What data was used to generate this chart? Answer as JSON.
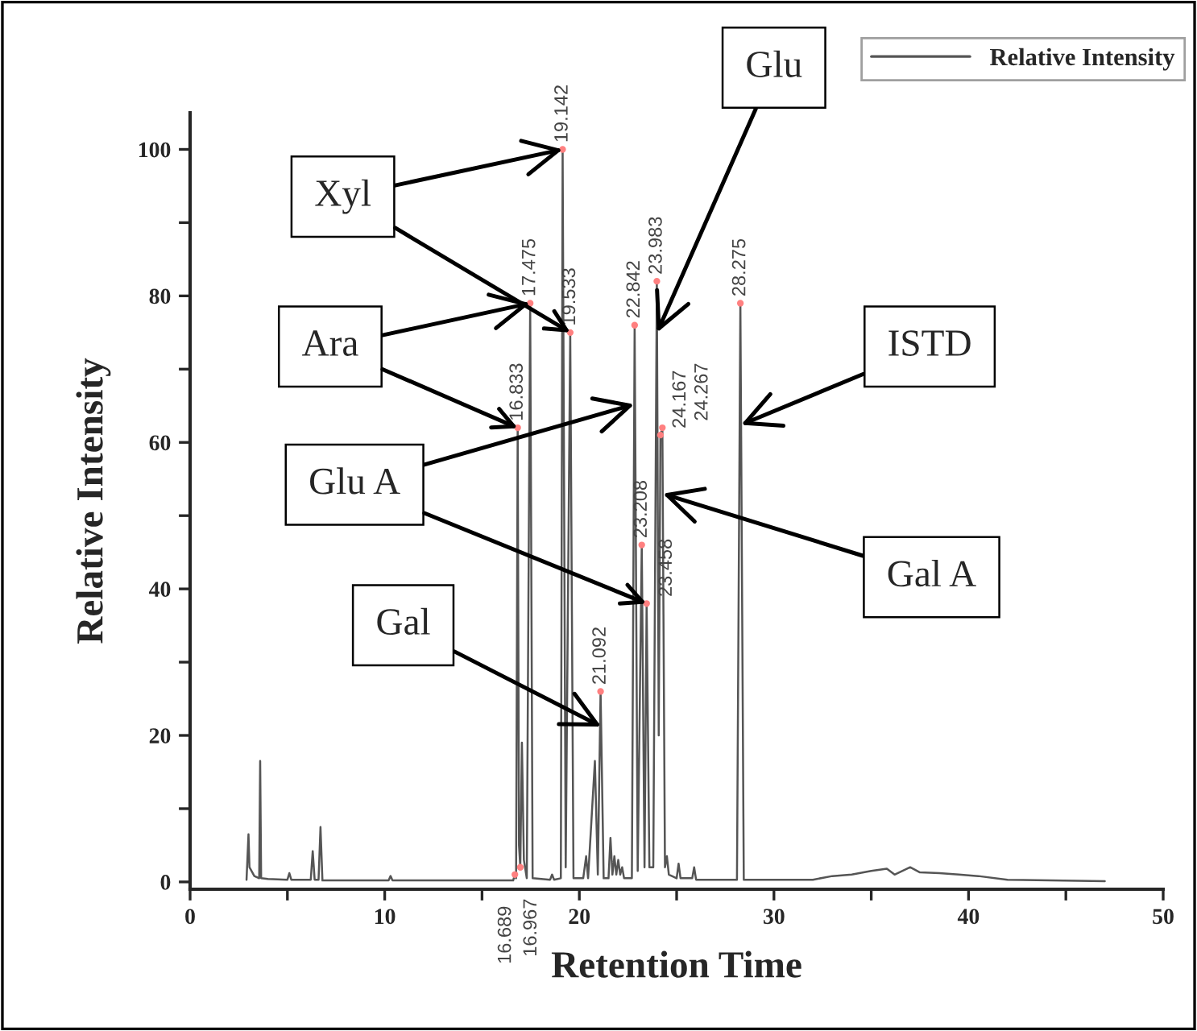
{
  "chart_data": {
    "type": "line",
    "xlabel": "Retention Time",
    "ylabel": "Relative Intensity",
    "xlim": [
      0,
      50
    ],
    "ylim": [
      -1,
      105
    ],
    "xticks": [
      0,
      {
        "value": 5,
        "label": null
      },
      10,
      {
        "value": 15,
        "label": null
      },
      20,
      {
        "value": 25,
        "label": null
      },
      30,
      {
        "value": 35,
        "label": null
      },
      40,
      {
        "value": 45,
        "label": null
      },
      50
    ],
    "yticks": [
      0,
      {
        "value": 10,
        "label": null
      },
      20,
      {
        "value": 30,
        "label": null
      },
      40,
      {
        "value": 50,
        "label": null
      },
      60,
      {
        "value": 70,
        "label": null
      },
      80,
      {
        "value": 90,
        "label": null
      },
      100
    ],
    "grid": false,
    "legend": "top right",
    "series": [
      {
        "name": "Relative Intensity",
        "color": "#555555",
        "x": [
          2.9,
          3.0,
          3.05,
          3.3,
          3.55,
          3.6,
          3.65,
          4.0,
          5.0,
          5.1,
          5.2,
          6.2,
          6.3,
          6.4,
          6.6,
          6.7,
          6.8,
          10.2,
          10.3,
          10.4,
          16.6,
          16.689,
          16.75,
          16.833,
          16.9,
          16.967,
          17.05,
          17.15,
          17.3,
          17.475,
          17.6,
          18.5,
          18.6,
          18.7,
          19.05,
          19.142,
          19.3,
          19.533,
          19.7,
          20.2,
          20.35,
          20.45,
          20.8,
          20.95,
          21.092,
          21.25,
          21.5,
          21.6,
          21.7,
          21.8,
          21.9,
          22.0,
          22.1,
          22.2,
          22.3,
          22.7,
          22.842,
          23.0,
          23.208,
          23.35,
          23.458,
          23.6,
          23.8,
          23.983,
          24.08,
          24.167,
          24.267,
          24.4,
          24.5,
          24.6,
          25.0,
          25.1,
          25.2,
          25.8,
          25.9,
          26.0,
          28.1,
          28.275,
          28.45,
          32,
          33,
          34,
          35,
          35.8,
          36.2,
          37,
          37.5,
          38.5,
          39.5,
          40.5,
          42,
          47
        ],
        "values": [
          0.3,
          6.5,
          2,
          0.8,
          0.5,
          16.5,
          0.5,
          0.4,
          0.3,
          1.2,
          0.3,
          0.3,
          4.2,
          0.3,
          0.3,
          7.5,
          0.2,
          0.2,
          0.8,
          0.2,
          0.2,
          1,
          0.5,
          62,
          5,
          2,
          19,
          3,
          0.5,
          79,
          0.5,
          0.3,
          1,
          0.3,
          0.5,
          100,
          2,
          75,
          0.5,
          0.5,
          3.5,
          0.5,
          16.5,
          1,
          26,
          0.5,
          0.5,
          6,
          1,
          3.5,
          1,
          3,
          1,
          2,
          0.5,
          0.5,
          76,
          1.5,
          46,
          2,
          38,
          2,
          2,
          82,
          20,
          61,
          62,
          2,
          3.5,
          1,
          0.5,
          2.5,
          0.5,
          0.5,
          2,
          0.3,
          0.3,
          79,
          0.3,
          0.3,
          0.8,
          1,
          1.5,
          1.8,
          1,
          2,
          1.3,
          1.2,
          1,
          0.8,
          0.3,
          0.1
        ]
      }
    ],
    "annotations": [
      {
        "text": "16.689",
        "x": 16.689,
        "y": 1
      },
      {
        "text": "16.967",
        "x": 16.967,
        "y": 2
      },
      {
        "text": "16.833",
        "x": 16.833,
        "y": 62
      },
      {
        "text": "17.475",
        "x": 17.475,
        "y": 79
      },
      {
        "text": "19.142",
        "x": 19.142,
        "y": 100
      },
      {
        "text": "19.533",
        "x": 19.533,
        "y": 75
      },
      {
        "text": "21.092",
        "x": 21.092,
        "y": 26
      },
      {
        "text": "22.842",
        "x": 22.842,
        "y": 76
      },
      {
        "text": "23.208",
        "x": 23.208,
        "y": 46
      },
      {
        "text": "23.458",
        "x": 23.458,
        "y": 38
      },
      {
        "text": "23.983",
        "x": 23.983,
        "y": 82
      },
      {
        "text": "24.167",
        "x": 24.167,
        "y": 61
      },
      {
        "text": "24.267",
        "x": 24.267,
        "y": 62
      },
      {
        "text": "28.275",
        "x": 28.275,
        "y": 79
      },
      {
        "text": "Xyl",
        "x": 19.142,
        "y": 100
      },
      {
        "text": "Ara",
        "x": 17.475,
        "y": 79
      },
      {
        "text": "Glu A",
        "x": 22.822,
        "y": 65.2
      },
      {
        "text": "Gal",
        "x": 21.122,
        "y": 21.2
      },
      {
        "text": "Glu",
        "x": 23.994,
        "y": 75
      },
      {
        "text": "ISTD",
        "x": 28.312,
        "y": 62.4
      },
      {
        "text": "Gal A",
        "x": 24.287,
        "y": 53
      }
    ]
  }
}
